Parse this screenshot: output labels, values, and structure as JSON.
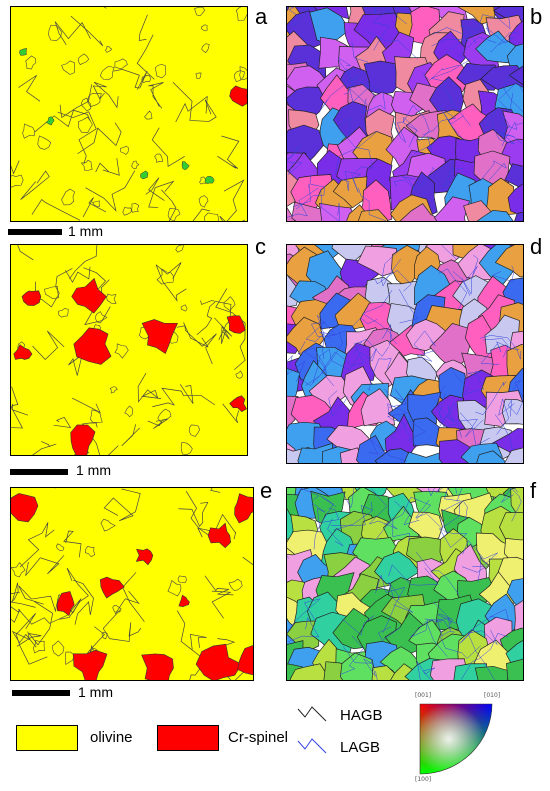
{
  "panels": [
    {
      "id": "a",
      "label": "a",
      "type": "phase"
    },
    {
      "id": "b",
      "label": "b",
      "type": "ipf"
    },
    {
      "id": "c",
      "label": "c",
      "type": "phase"
    },
    {
      "id": "d",
      "label": "d",
      "type": "ipf"
    },
    {
      "id": "e",
      "label": "e",
      "type": "phase"
    },
    {
      "id": "f",
      "label": "f",
      "type": "ipf"
    }
  ],
  "scale_bar": {
    "label": "1 mm"
  },
  "legend": {
    "phases": [
      {
        "name": "olivine",
        "color": "#ffff00"
      },
      {
        "name": "Cr-spinel",
        "color": "#ff0000"
      }
    ],
    "boundaries": [
      {
        "name": "HAGB",
        "color": "#222222"
      },
      {
        "name": "LAGB",
        "color": "#3344dd"
      }
    ],
    "ipf_key": {
      "corner_001": "[001]",
      "corner_010": "[010]",
      "corner_100": "[100]"
    }
  },
  "colors": {
    "olivine": "#ffff00",
    "spinel": "#ff0000",
    "minor_phase": "#33cc33",
    "ipf_palette": [
      "#9b3cf0",
      "#7a2de8",
      "#f08aa0",
      "#e070c8",
      "#5a30d8",
      "#d060f0",
      "#3a6af0",
      "#f0a0e0",
      "#c8c8f0",
      "#40a0f0",
      "#ff60c0",
      "#e8a040",
      "#3ac050",
      "#8ad040",
      "#b8e040",
      "#30d0a0",
      "#60e060",
      "#f0f070"
    ]
  }
}
